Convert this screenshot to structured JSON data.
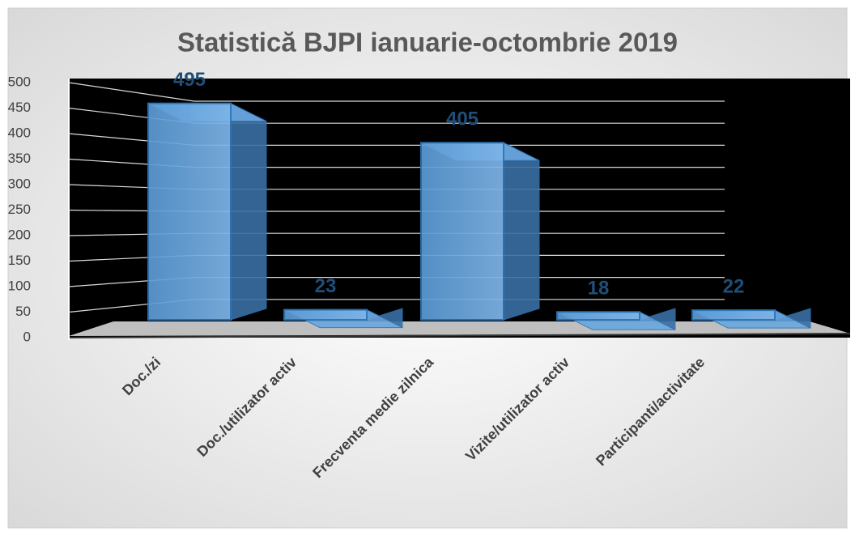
{
  "chart_data": {
    "type": "bar3d",
    "title": "Statistică BJPI ianuarie-octombrie 2019",
    "categories": [
      "Doc./zi",
      "Doc./utilizator activ",
      "Frecventa medie zilnica",
      "Vizite/utilizator activ",
      "Participanti/activitate"
    ],
    "values": [
      495,
      23,
      405,
      18,
      22
    ],
    "color": "#5b9bd5",
    "ylim": [
      0,
      500
    ],
    "yticks": [
      0,
      50,
      100,
      150,
      200,
      250,
      300,
      350,
      400,
      450,
      500
    ],
    "grid": true
  }
}
